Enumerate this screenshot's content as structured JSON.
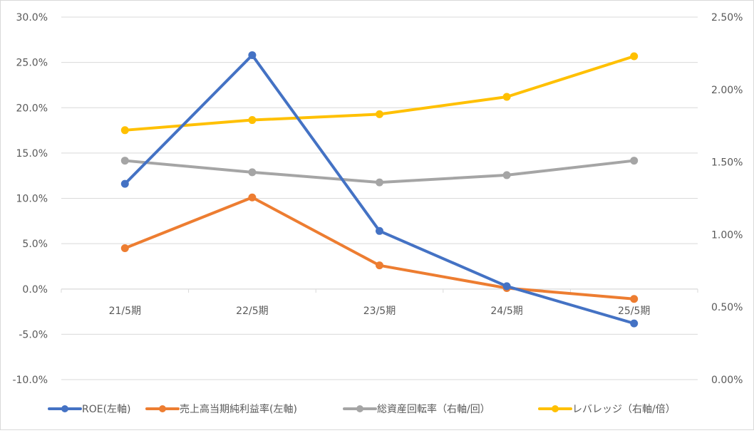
{
  "chart_data": {
    "type": "line",
    "categories": [
      "21/5期",
      "22/5期",
      "23/5期",
      "24/5期",
      "25/5期"
    ],
    "left_axis": {
      "range": [
        -0.1,
        0.3
      ],
      "step": 0.05,
      "tick_labels": [
        "-10.0%",
        "-5.0%",
        "0.0%",
        "5.0%",
        "10.0%",
        "15.0%",
        "20.0%",
        "25.0%",
        "30.0%"
      ]
    },
    "right_axis": {
      "range": [
        0.0,
        0.025
      ],
      "step": 0.005,
      "tick_labels": [
        "0.00%",
        "0.50%",
        "1.00%",
        "1.50%",
        "2.00%",
        "2.50%"
      ]
    },
    "grid": true,
    "legend_position": "bottom",
    "series": [
      {
        "name": "ROE(左軸)",
        "axis": "left",
        "color": "#4472C4",
        "values": [
          0.116,
          0.258,
          0.064,
          0.003,
          -0.038
        ]
      },
      {
        "name": "売上高当期純利益率(左軸)",
        "axis": "left",
        "color": "#ED7D31",
        "values": [
          0.045,
          0.101,
          0.026,
          0.001,
          -0.011
        ]
      },
      {
        "name": "総資産回転率（右軸/回）",
        "axis": "right",
        "color": "#A5A5A5",
        "values": [
          0.0151,
          0.0143,
          0.0136,
          0.0141,
          0.0151
        ]
      },
      {
        "name": "レバレッジ（右軸/倍）",
        "axis": "right",
        "color": "#FFC000",
        "values": [
          0.0172,
          0.0179,
          0.0183,
          0.0195,
          0.0223
        ]
      }
    ]
  }
}
